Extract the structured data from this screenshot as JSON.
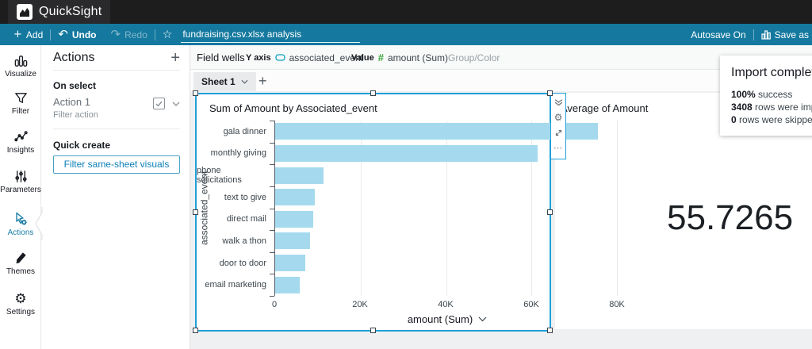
{
  "brand": {
    "name": "QuickSight"
  },
  "toolbar": {
    "add_label": "Add",
    "undo_label": "Undo",
    "redo_label": "Redo",
    "analysis_title": "fundraising.csv.xlsx analysis",
    "autosave_label": "Autosave On",
    "save_as_label": "Save as"
  },
  "sidebar": {
    "items": [
      {
        "label": "Visualize",
        "active": false
      },
      {
        "label": "Filter",
        "active": false
      },
      {
        "label": "Insights",
        "active": false
      },
      {
        "label": "Parameters",
        "active": false
      },
      {
        "label": "Actions",
        "active": true
      },
      {
        "label": "Themes",
        "active": false
      },
      {
        "label": "Settings",
        "active": false
      }
    ]
  },
  "actions_panel": {
    "title": "Actions",
    "add_button": "+",
    "on_select_heading": "On select",
    "action": {
      "name": "Action 1",
      "type": "Filter action",
      "enabled": true
    },
    "quick_create_heading": "Quick create",
    "quick_create_button": "Filter same-sheet visuals"
  },
  "field_wells": {
    "label": "Field wells",
    "wells": [
      {
        "name": "Y axis",
        "field": "associated_event",
        "field_type": "dimension"
      },
      {
        "name": "Value",
        "field": "amount (Sum)",
        "field_type": "measure"
      },
      {
        "name": "Group/Color",
        "field": "",
        "field_type": ""
      }
    ]
  },
  "sheet_bar": {
    "tabs": [
      {
        "label": "Sheet 1"
      }
    ],
    "add_tab": "+"
  },
  "chart_data": {
    "type": "bar",
    "orientation": "horizontal",
    "title": "Sum of Amount by Associated_event",
    "categories": [
      "gala dinner",
      "monthly giving",
      "phone solicitations",
      "text to give",
      "direct mail",
      "walk a thon",
      "door to door",
      "email marketing"
    ],
    "values": [
      75500,
      61500,
      11400,
      9300,
      8900,
      8100,
      7100,
      5700
    ],
    "xlabel": "amount (Sum)",
    "ylabel": "associated_event",
    "xlim": [
      0,
      80741
    ],
    "xticks": [
      {
        "label": "0",
        "value": 0
      },
      {
        "label": "20K",
        "value": 20000
      },
      {
        "label": "40K",
        "value": 40000
      },
      {
        "label": "60K",
        "value": 60000
      },
      {
        "label": "80K",
        "value": 80000
      }
    ],
    "bar_color": "#A5DAEE",
    "grid": true,
    "legend": "none"
  },
  "kpi": {
    "title": "Average of Amount",
    "value": "55.7265"
  },
  "notification": {
    "title": "Import complete",
    "lines": [
      {
        "bold": "100%",
        "rest": " success"
      },
      {
        "bold": "3408",
        "rest": " rows were imported"
      },
      {
        "bold": "0",
        "rest": " rows were skipped"
      }
    ]
  },
  "colors": {
    "topbar": "#1D1D1E",
    "accent_teal": "#15799F",
    "selection_blue": "#1FA0D9",
    "bar_fill": "#A5DAEE",
    "link_blue": "#0C7FB8",
    "measure_green": "#3AA63A",
    "canvas_gray": "#EFF0F1"
  }
}
